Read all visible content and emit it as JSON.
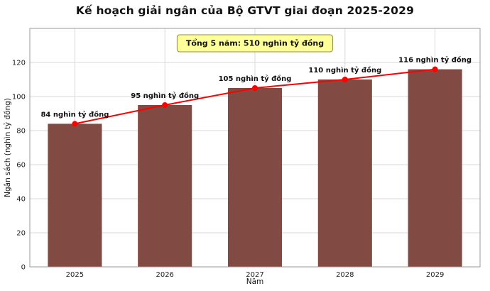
{
  "chart_data": {
    "type": "bar",
    "title": "Kế hoạch giải ngân của Bộ GTVT giai đoạn 2025-2029",
    "annotation": "Tổng 5 năm: 510 nghìn tỷ đồng",
    "total_5_years": 510,
    "categories": [
      "2025",
      "2026",
      "2027",
      "2028",
      "2029"
    ],
    "values": [
      84,
      95,
      105,
      110,
      116
    ],
    "data_labels": [
      "84 nghìn tỷ đồng",
      "95 nghìn tỷ đồng",
      "105 nghìn tỷ đồng",
      "110 nghìn tỷ đồng",
      "116 nghìn tỷ đồng"
    ],
    "overlay_line": true,
    "xlabel": "Năm",
    "ylabel": "Ngân sách (nghìn tỷ đồng)",
    "ylim": [
      0,
      140
    ],
    "yticks": [
      0,
      20,
      40,
      60,
      80,
      100,
      120
    ],
    "grid": true,
    "legend": "none",
    "colors": {
      "bar": "#814a42",
      "line": "#ff0000",
      "grid": "#d9d9d9",
      "plot_border": "#999999",
      "annotation_bg": "#ffff99",
      "annotation_border": "#8f8f3f",
      "text": "#111111"
    }
  }
}
